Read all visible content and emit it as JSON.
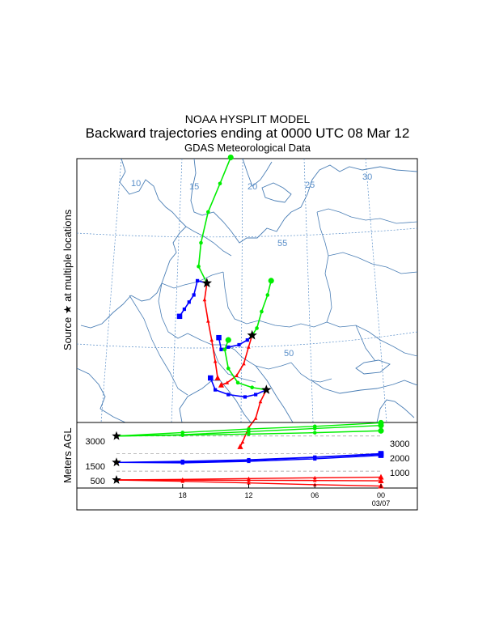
{
  "title": "NOAA HYSPLIT MODEL",
  "subtitle": "Backward trajectories ending at 0000 UTC 08 Mar 12",
  "data_source": "GDAS Meteorological Data",
  "map": {
    "ylabel": "Source ★ at multiple locations",
    "longitude_labels": [
      "10",
      "15",
      "20",
      "25",
      "30"
    ],
    "latitude_labels": [
      "55",
      "50"
    ]
  },
  "colors": {
    "red": "#ff0000",
    "blue": "#0000ff",
    "green": "#00ee00",
    "coast": "#4a7eb5",
    "grid": "#5a8fc9"
  },
  "chart_data": {
    "type": "line",
    "title": "Backward trajectories ending at 0000 UTC 08 Mar 12",
    "ylabel": "Meters AGL",
    "x_labels": [
      "18",
      "12",
      "06",
      "00"
    ],
    "date_label": "03/07",
    "left_axis_levels": [
      "3000",
      "1500",
      "500"
    ],
    "right_axis_levels": [
      "3000",
      "2000",
      "1000"
    ],
    "ylim": [
      0,
      3800
    ],
    "x_hours_back": [
      24,
      18,
      12,
      6,
      0
    ],
    "series": [
      {
        "color": "red",
        "marker": "triangle",
        "values": [
          500,
          530,
          580,
          620,
          660
        ]
      },
      {
        "color": "red",
        "marker": "triangle",
        "values": [
          500,
          490,
          480,
          470,
          450
        ]
      },
      {
        "color": "red",
        "marker": "triangle",
        "values": [
          500,
          420,
          330,
          230,
          150
        ]
      },
      {
        "color": "blue",
        "marker": "square",
        "values": [
          1500,
          1560,
          1650,
          1800,
          2000
        ]
      },
      {
        "color": "blue",
        "marker": "square",
        "values": [
          1500,
          1520,
          1620,
          1780,
          1960
        ]
      },
      {
        "color": "blue",
        "marker": "square",
        "values": [
          1500,
          1470,
          1560,
          1700,
          1900
        ]
      },
      {
        "color": "green",
        "marker": "circle",
        "values": [
          3000,
          3200,
          3400,
          3550,
          3750
        ]
      },
      {
        "color": "green",
        "marker": "circle",
        "values": [
          3000,
          3080,
          3250,
          3430,
          3600
        ]
      },
      {
        "color": "green",
        "marker": "circle",
        "values": [
          3000,
          3050,
          3110,
          3190,
          3300
        ]
      }
    ],
    "sources": [
      {
        "name": "star-1",
        "lon": 17.2,
        "lat": 53.3
      },
      {
        "name": "star-2",
        "lon": 21.0,
        "lat": 51.1
      },
      {
        "name": "star-3",
        "lon": 22.2,
        "lat": 48.8
      }
    ]
  }
}
